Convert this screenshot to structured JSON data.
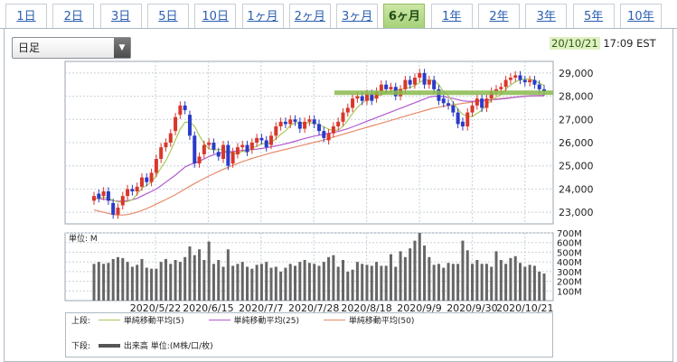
{
  "tabs": [
    {
      "label": "1日"
    },
    {
      "label": "2日"
    },
    {
      "label": "3日"
    },
    {
      "label": "5日"
    },
    {
      "label": "10日"
    },
    {
      "label": "1ヶ月"
    },
    {
      "label": "2ヶ月"
    },
    {
      "label": "3ヶ月"
    },
    {
      "label": "6ヶ月",
      "active": true
    },
    {
      "label": "1年"
    },
    {
      "label": "2年"
    },
    {
      "label": "3年"
    },
    {
      "label": "5年"
    },
    {
      "label": "10年"
    }
  ],
  "period_select": {
    "value": "日足"
  },
  "timestamp": {
    "date": "20/10/21",
    "time": "17:09 EST"
  },
  "colors": {
    "up": "#d9372b",
    "down": "#2a3bc8",
    "ma5": "#a8c95a",
    "ma25": "#b05ad0",
    "ma50": "#e88a6a",
    "hline": "#8ab94e",
    "volume": "#666666"
  },
  "chart_data": [
    {
      "type": "candlestick",
      "ylim": [
        22500,
        29500
      ],
      "y_ticks": [
        "29,000",
        "28,000",
        "27,000",
        "26,000",
        "25,000",
        "24,000",
        "23,000"
      ],
      "x_ticks": [
        "2020/5/22",
        "2020/6/15",
        "2020/7/7",
        "2020/7/28",
        "2020/8/18",
        "2020/9/9",
        "2020/9/30",
        "2020/10/21"
      ],
      "close": [
        23700,
        23600,
        23900,
        23500,
        22900,
        23200,
        23700,
        24000,
        23900,
        24100,
        24500,
        24300,
        24700,
        25300,
        25800,
        26000,
        26400,
        27100,
        27600,
        27400,
        26300,
        25100,
        25400,
        25900,
        26000,
        25700,
        25400,
        25900,
        25000,
        25600,
        25800,
        25900,
        25600,
        26000,
        26200,
        26100,
        25800,
        26300,
        26700,
        26900,
        26800,
        27000,
        26900,
        26600,
        26900,
        27000,
        26800,
        26500,
        26200,
        26400,
        26700,
        26900,
        27300,
        27500,
        27900,
        28000,
        27800,
        28100,
        27800,
        28200,
        28500,
        28300,
        28400,
        28000,
        28300,
        28700,
        28500,
        28800,
        29000,
        28500,
        28700,
        28300,
        27800,
        27700,
        27600,
        27300,
        26800,
        26700,
        27300,
        27600,
        27900,
        27500,
        27900,
        28200,
        28300,
        28400,
        28700,
        28800,
        28900,
        28700,
        28600,
        28700,
        28500,
        28300,
        28200
      ],
      "open": [
        23500,
        23800,
        23700,
        23900,
        23400,
        22900,
        23300,
        23700,
        24000,
        23900,
        24100,
        24500,
        24300,
        24700,
        25300,
        25800,
        26000,
        26500,
        27200,
        27600,
        27200,
        26300,
        25100,
        25500,
        25900,
        26000,
        25600,
        25300,
        25900,
        25100,
        25500,
        25800,
        25900,
        25700,
        26000,
        26200,
        26100,
        25900,
        26300,
        26700,
        26900,
        26800,
        27000,
        26900,
        26600,
        26900,
        27000,
        26800,
        26500,
        26100,
        26400,
        26700,
        26900,
        27300,
        27500,
        27900,
        28000,
        27800,
        28100,
        27900,
        28200,
        28500,
        28300,
        28400,
        28000,
        28300,
        28700,
        28500,
        28800,
        29000,
        28500,
        28700,
        28300,
        27900,
        27700,
        27600,
        27300,
        26900,
        26700,
        27300,
        27600,
        27900,
        27500,
        27900,
        28200,
        28300,
        28400,
        28700,
        28800,
        28900,
        28700,
        28600,
        28700,
        28500,
        28300
      ],
      "ma5": [
        23600,
        23600,
        23650,
        23600,
        23520,
        23440,
        23440,
        23460,
        23540,
        23780,
        24040,
        24160,
        24300,
        24580,
        24920,
        25220,
        25640,
        26120,
        26580,
        26880,
        26880,
        26700,
        26300,
        25960,
        25740,
        25680,
        25700,
        25700,
        25560,
        25580,
        25500,
        25640,
        25580,
        25780,
        25840,
        25960,
        25940,
        26000,
        26160,
        26360,
        26500,
        26740,
        26860,
        26840,
        26840,
        26860,
        26840,
        26760,
        26680,
        26580,
        26520,
        26540,
        26700,
        26960,
        27260,
        27520,
        27700,
        27860,
        27920,
        27980,
        28080,
        28180,
        28220,
        28280,
        28300,
        28340,
        28380,
        28460,
        28600,
        28700,
        28700,
        28660,
        28500,
        28200,
        28020,
        27740,
        27440,
        27220,
        27140,
        27120,
        27260,
        27400,
        27640,
        27820,
        27960,
        28060,
        28300,
        28480,
        28620,
        28700,
        28740,
        28740,
        28680,
        28560,
        28460
      ],
      "ma25": [
        23600,
        23580,
        23560,
        23540,
        23500,
        23480,
        23480,
        23500,
        23540,
        23600,
        23700,
        23800,
        23900,
        24000,
        24150,
        24300,
        24450,
        24600,
        24780,
        24950,
        25050,
        25120,
        25200,
        25300,
        25400,
        25480,
        25540,
        25580,
        25600,
        25620,
        25640,
        25660,
        25680,
        25700,
        25720,
        25750,
        25780,
        25820,
        25860,
        25900,
        25950,
        26000,
        26060,
        26120,
        26180,
        26230,
        26280,
        26320,
        26360,
        26400,
        26440,
        26480,
        26540,
        26600,
        26680,
        26760,
        26840,
        26920,
        27000,
        27080,
        27160,
        27240,
        27320,
        27400,
        27480,
        27560,
        27640,
        27720,
        27800,
        27880,
        27960,
        28000,
        28000,
        27980,
        27950,
        27900,
        27850,
        27800,
        27780,
        27780,
        27790,
        27800,
        27820,
        27840,
        27860,
        27880,
        27900,
        27930,
        27960,
        27980,
        28000,
        28010,
        28020,
        28020,
        28020
      ],
      "ma50": [
        23100,
        23050,
        23000,
        22950,
        22900,
        22880,
        22880,
        22900,
        22950,
        23000,
        23080,
        23160,
        23250,
        23350,
        23450,
        23550,
        23650,
        23760,
        23880,
        24000,
        24120,
        24240,
        24350,
        24460,
        24560,
        24660,
        24760,
        24850,
        24940,
        25020,
        25100,
        25180,
        25250,
        25320,
        25380,
        25440,
        25500,
        25560,
        25610,
        25660,
        25710,
        25760,
        25810,
        25860,
        25910,
        25960,
        26010,
        26060,
        26120,
        26180,
        26240,
        26300,
        26360,
        26420,
        26480,
        26540,
        26600,
        26660,
        26720,
        26780,
        26840,
        26900,
        26960,
        27020,
        27080,
        27140,
        27200,
        27260,
        27320,
        27380,
        27440,
        27490,
        27530,
        27570,
        27600,
        27630,
        27660,
        27690,
        27720,
        27750,
        27780,
        27810,
        27840,
        27860,
        27880,
        27900,
        27920,
        27940,
        27960,
        27980,
        28000,
        28010,
        28020,
        28030,
        28040
      ],
      "hline_value": 28150
    },
    {
      "type": "bar",
      "label": "単位: M",
      "ylim": [
        0,
        700
      ],
      "y_ticks": [
        "700M",
        "600M",
        "500M",
        "400M",
        "300M",
        "200M",
        "100M"
      ],
      "values": [
        380,
        400,
        380,
        390,
        430,
        450,
        440,
        400,
        350,
        370,
        430,
        340,
        330,
        330,
        400,
        430,
        380,
        420,
        400,
        450,
        560,
        470,
        530,
        420,
        610,
        380,
        420,
        350,
        530,
        360,
        380,
        400,
        350,
        330,
        370,
        380,
        400,
        340,
        350,
        300,
        340,
        380,
        360,
        400,
        420,
        390,
        380,
        360,
        400,
        450,
        470,
        350,
        420,
        300,
        320,
        400,
        380,
        370,
        360,
        400,
        360,
        360,
        480,
        350,
        510,
        450,
        540,
        620,
        700,
        570,
        450,
        370,
        380,
        340,
        390,
        380,
        380,
        620,
        520,
        380,
        420,
        380,
        380,
        350,
        510,
        420,
        380,
        440,
        460,
        390,
        350,
        370,
        360,
        300,
        280
      ]
    }
  ],
  "legend": {
    "upper_label": "上段:",
    "lower_label": "下段:",
    "ma5": "単純移動平均(5)",
    "ma25": "単純移動平均(25)",
    "ma50": "単純移動平均(50)",
    "volume": "出来高 単位:(M株/口/枚)"
  }
}
